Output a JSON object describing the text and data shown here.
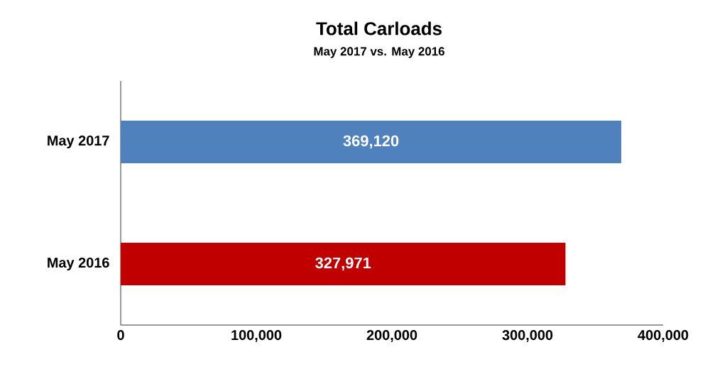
{
  "chart_data": {
    "type": "bar",
    "orientation": "horizontal",
    "title": "Total Carloads",
    "subtitle": "May 2017 vs. May 2016",
    "categories": [
      "May 2017",
      "May 2016"
    ],
    "values": [
      369120,
      327971
    ],
    "colors": [
      "#4f81bd",
      "#c00000"
    ],
    "value_labels": [
      "369,120",
      "327,971"
    ],
    "xlim": [
      0,
      400000
    ],
    "xticks": [
      0,
      {
        "value": 100000,
        "label": "100,000"
      },
      {
        "value": 200000,
        "label": "200,000"
      },
      {
        "value": 300000,
        "label": "300,000"
      },
      {
        "value": 400000,
        "label": "400,000"
      }
    ],
    "grid": false
  }
}
